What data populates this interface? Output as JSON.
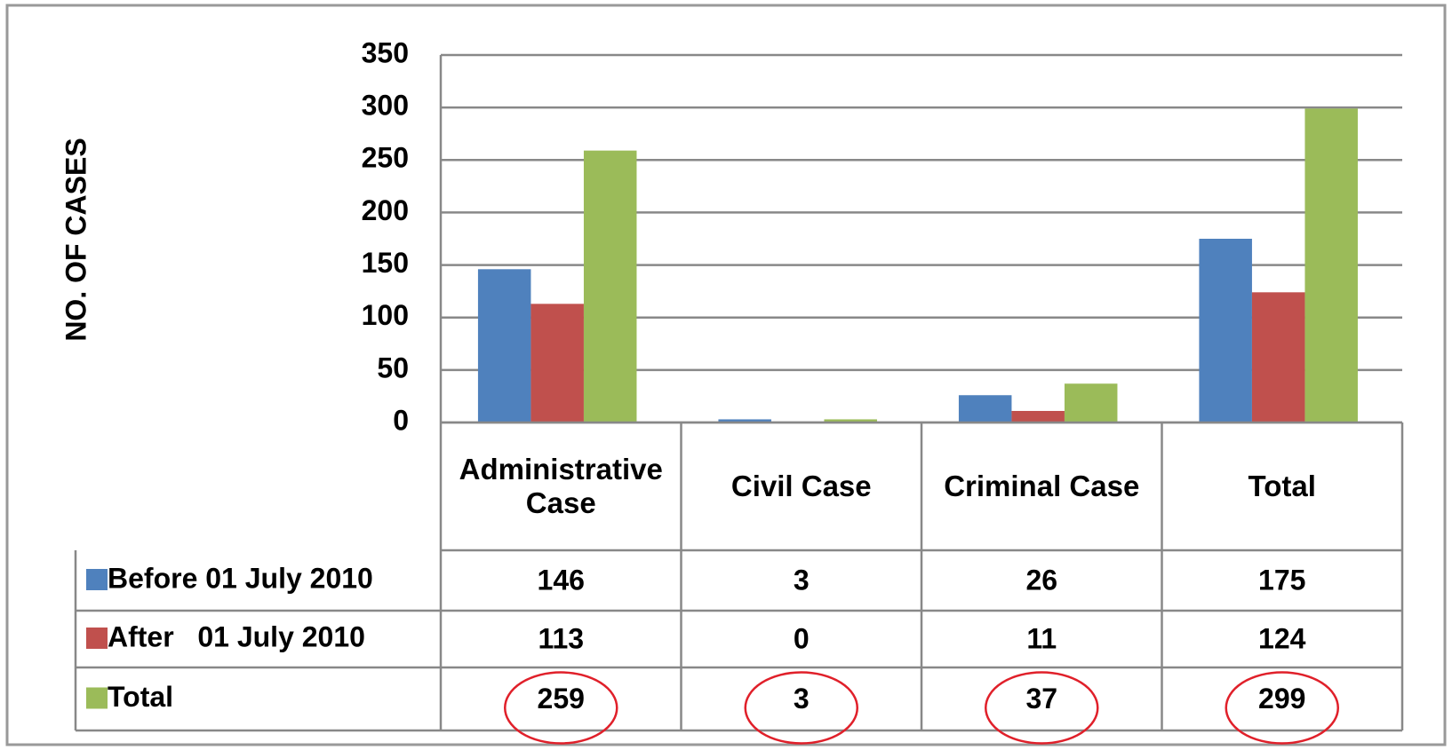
{
  "chart_data": {
    "type": "bar",
    "y_label": "NO. OF CASES",
    "categories": [
      "Administrative Case",
      "Civil Case",
      "Criminal Case",
      "Total"
    ],
    "series": [
      {
        "name": "Before 01 July 2010",
        "color": "#4f81bd",
        "values": [
          146,
          3,
          26,
          175
        ]
      },
      {
        "name": "After   01 July 2010",
        "color": "#c0504d",
        "values": [
          113,
          0,
          11,
          124
        ]
      },
      {
        "name": "Total",
        "color": "#9bbb59",
        "values": [
          259,
          3,
          37,
          299
        ]
      }
    ],
    "ylim": [
      0,
      350
    ],
    "yticks": [
      0,
      50,
      100,
      150,
      200,
      250,
      300,
      350
    ],
    "grid": true
  }
}
